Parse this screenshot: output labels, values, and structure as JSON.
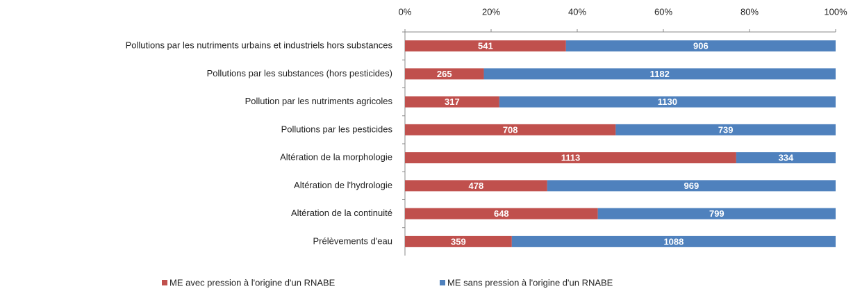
{
  "chart_data": {
    "type": "bar",
    "orientation": "horizontal",
    "stacking": "percent",
    "categories": [
      "Pollutions par les nutriments urbains et industriels hors substances",
      "Pollutions par les substances (hors pesticides)",
      "Pollution par les nutriments agricoles",
      "Pollutions par les pesticides",
      "Altération de la morphologie",
      "Altération de l'hydrologie",
      "Altération de la continuité",
      "Prélèvements d'eau"
    ],
    "series": [
      {
        "name": "ME avec pression à l'origine d'un RNABE",
        "color": "#c0504d",
        "values": [
          541,
          265,
          317,
          708,
          1113,
          478,
          648,
          359
        ]
      },
      {
        "name": "ME sans pression à l'origine d'un RNABE",
        "color": "#4f81bd",
        "values": [
          906,
          1182,
          1130,
          739,
          334,
          969,
          799,
          1088
        ]
      }
    ],
    "xlim": [
      0,
      100
    ],
    "xticks": [
      {
        "value": 0,
        "label": "0%"
      },
      {
        "value": 20,
        "label": "20%"
      },
      {
        "value": 40,
        "label": "40%"
      },
      {
        "value": 60,
        "label": "60%"
      },
      {
        "value": 80,
        "label": "80%"
      },
      {
        "value": 100,
        "label": "100%"
      }
    ],
    "grid": false,
    "legend": "bottom"
  }
}
